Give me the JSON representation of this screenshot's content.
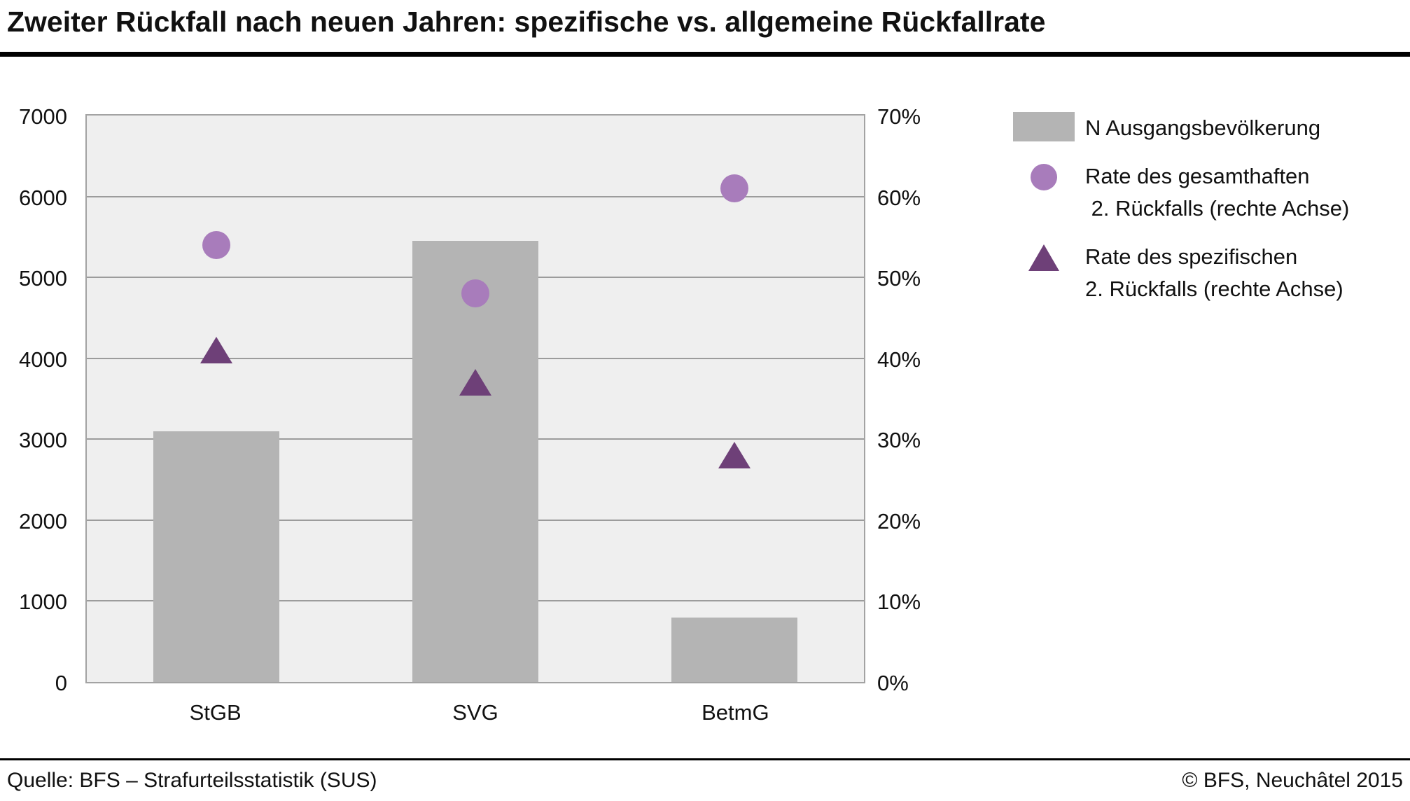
{
  "title": "Zweiter Rückfall nach neuen Jahren: spezifische vs. allgemeine Rückfallrate",
  "footer": {
    "source": "Quelle: BFS – Strafurteilsstatistik (SUS)",
    "copyright": "© BFS, Neuchâtel 2015"
  },
  "colors": {
    "bar": "#b4b4b4",
    "circle": "#a87cbb",
    "triangle": "#6e4078",
    "plot_bg": "#efefef",
    "grid": "#9c9c9c"
  },
  "chart_data": {
    "type": "bar",
    "subtype": "bar+scatter combo, dual axis",
    "categories": [
      "StGB",
      "SVG",
      "BetmG"
    ],
    "series": [
      {
        "name": "N Ausgangsbevölkerung",
        "type": "bar",
        "axis": "left",
        "values": [
          3100,
          5450,
          800
        ]
      },
      {
        "name": "Rate des gesamthaften 2. Rückfalls (rechte Achse)",
        "type": "circle",
        "axis": "right",
        "values": [
          54,
          48,
          61
        ]
      },
      {
        "name": "Rate des spezifischen 2. Rückfalls (rechte Achse)",
        "type": "triangle",
        "axis": "right",
        "values": [
          41,
          37,
          28
        ]
      }
    ],
    "left_axis": {
      "min": 0,
      "max": 7000,
      "step": 1000,
      "ticks": [
        "0",
        "1000",
        "2000",
        "3000",
        "4000",
        "5000",
        "6000",
        "7000"
      ]
    },
    "right_axis": {
      "min": 0,
      "max": 70,
      "step": 10,
      "ticks": [
        "0%",
        "10%",
        "20%",
        "30%",
        "40%",
        "50%",
        "60%",
        "70%"
      ]
    },
    "grid": true,
    "legend_position": "right"
  },
  "legend": {
    "items": [
      {
        "marker": "bar-swatch",
        "lines": [
          "N Ausgangsbevölkerung"
        ]
      },
      {
        "marker": "circle",
        "lines": [
          "Rate des gesamthaften",
          " 2. Rückfalls (rechte Achse)"
        ]
      },
      {
        "marker": "triangle",
        "lines": [
          "Rate des spezifischen",
          "2. Rückfalls (rechte Achse)"
        ]
      }
    ]
  }
}
